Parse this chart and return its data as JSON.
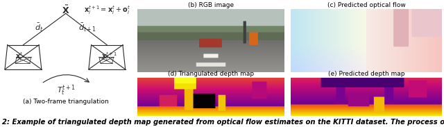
{
  "bg_color": "#ffffff",
  "fig_width": 6.4,
  "fig_height": 1.83,
  "caption_text": "2: Example of triangulated depth map generated from optical flow estimates on the KITTI dataset. The process o",
  "caption_fontsize": 7.2,
  "panel_labels": {
    "a": "(a) Two-frame triangulation",
    "b": "(b) RGB image",
    "c": "(c) Predicted optical flow",
    "d": "(d) Triangulated depth map",
    "e": "(e) Predicted depth map"
  },
  "label_fontsize": 6.5,
  "axes": {
    "diag": [
      0.005,
      0.15,
      0.295,
      0.8
    ],
    "rgb": [
      0.31,
      0.43,
      0.33,
      0.5
    ],
    "flow": [
      0.655,
      0.43,
      0.34,
      0.5
    ],
    "depth_tri": [
      0.31,
      0.09,
      0.33,
      0.3
    ],
    "depth_pred": [
      0.655,
      0.09,
      0.34,
      0.3
    ]
  }
}
